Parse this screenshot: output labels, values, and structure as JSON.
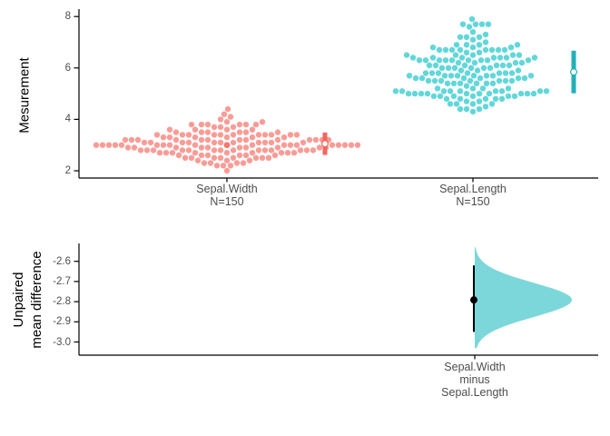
{
  "figure": {
    "kind": "estimation-plot",
    "background": "#ffffff",
    "axis_color": "#000000",
    "tick_label_color": "#4d4d4d"
  },
  "chart_data": [
    {
      "panel": "top",
      "type": "swarm",
      "ylabel": "Mesurement",
      "ytick_labels": [
        "8",
        "6",
        "4",
        "2"
      ],
      "yticks": [
        8,
        6,
        4,
        2
      ],
      "ylim": [
        1.8,
        8.4
      ],
      "grid": false,
      "groups": [
        {
          "label": "Sepal.Width",
          "n_label": "N=150",
          "n": 150,
          "color": "#F8766D",
          "bar_color": "#F4655D",
          "mean": 3.057,
          "sd": 0.436,
          "values": [
            3.5,
            3.0,
            3.2,
            3.1,
            3.6,
            3.9,
            3.4,
            3.4,
            2.9,
            3.1,
            3.7,
            3.4,
            3.0,
            3.0,
            4.0,
            4.4,
            3.9,
            3.5,
            3.8,
            3.8,
            3.4,
            3.7,
            3.6,
            3.3,
            3.4,
            3.0,
            3.4,
            3.5,
            3.4,
            3.2,
            3.1,
            3.4,
            4.1,
            4.2,
            3.1,
            3.2,
            3.5,
            3.6,
            3.0,
            3.4,
            3.5,
            2.3,
            3.2,
            3.5,
            3.8,
            3.0,
            3.8,
            3.2,
            3.7,
            3.3,
            3.2,
            3.2,
            3.1,
            2.3,
            2.8,
            2.8,
            3.3,
            2.4,
            2.9,
            2.7,
            2.0,
            3.0,
            2.2,
            2.9,
            2.9,
            3.1,
            3.0,
            2.7,
            2.2,
            2.5,
            3.2,
            2.8,
            2.5,
            2.8,
            2.9,
            3.0,
            2.8,
            3.0,
            2.9,
            2.6,
            2.4,
            2.4,
            2.7,
            2.7,
            3.0,
            3.4,
            3.1,
            2.3,
            3.0,
            2.5,
            2.6,
            3.0,
            2.6,
            2.3,
            2.7,
            3.0,
            2.9,
            2.9,
            2.5,
            2.8,
            3.3,
            2.7,
            3.0,
            2.9,
            3.0,
            3.0,
            2.5,
            2.9,
            2.5,
            3.6,
            3.2,
            2.7,
            3.0,
            2.5,
            2.8,
            3.2,
            3.0,
            3.8,
            2.6,
            2.2,
            3.2,
            2.8,
            2.8,
            2.7,
            3.3,
            3.2,
            2.8,
            3.0,
            2.8,
            3.0,
            2.8,
            3.8,
            2.8,
            2.8,
            2.6,
            3.0,
            3.4,
            3.1,
            3.0,
            3.1,
            3.1,
            3.1,
            2.7,
            3.2,
            3.3,
            3.0,
            2.5,
            3.0,
            2.6,
            3.0
          ]
        },
        {
          "label": "Sepal.Length",
          "n_label": "N=150",
          "n": 150,
          "color": "#00BFC4",
          "bar_color": "#23AFB8",
          "mean": 5.843,
          "sd": 0.828,
          "values": [
            5.1,
            4.9,
            4.7,
            4.6,
            5.0,
            5.4,
            4.6,
            5.0,
            4.4,
            4.9,
            5.4,
            4.8,
            4.8,
            4.3,
            5.8,
            5.7,
            5.4,
            5.1,
            5.7,
            5.1,
            5.4,
            5.1,
            4.6,
            5.1,
            4.8,
            5.0,
            5.0,
            5.2,
            5.2,
            4.7,
            4.8,
            5.4,
            5.2,
            5.5,
            4.9,
            5.0,
            5.5,
            4.9,
            4.4,
            5.1,
            5.0,
            4.5,
            4.4,
            5.0,
            5.1,
            4.8,
            5.1,
            4.6,
            5.3,
            5.0,
            7.0,
            6.4,
            6.9,
            5.5,
            6.5,
            5.7,
            6.3,
            4.9,
            6.6,
            5.2,
            5.0,
            5.9,
            6.0,
            6.1,
            5.6,
            6.7,
            5.6,
            5.8,
            6.2,
            5.6,
            5.9,
            6.1,
            6.3,
            6.1,
            6.4,
            6.6,
            6.8,
            6.7,
            6.0,
            5.7,
            5.5,
            5.5,
            5.8,
            6.0,
            5.4,
            6.0,
            6.7,
            6.3,
            5.6,
            5.5,
            5.5,
            6.1,
            5.8,
            5.0,
            5.6,
            5.7,
            5.7,
            6.2,
            5.1,
            5.7,
            6.3,
            5.8,
            7.1,
            6.3,
            6.5,
            7.6,
            4.9,
            7.3,
            6.7,
            7.2,
            6.5,
            6.4,
            6.8,
            5.7,
            5.8,
            6.4,
            6.5,
            7.7,
            7.7,
            6.0,
            6.9,
            5.6,
            7.7,
            6.3,
            6.7,
            7.2,
            6.2,
            6.1,
            6.4,
            7.2,
            7.4,
            7.9,
            6.4,
            6.3,
            6.1,
            7.7,
            6.3,
            6.4,
            6.0,
            6.9,
            6.7,
            6.9,
            5.8,
            6.8,
            6.7,
            6.7,
            6.3,
            6.5,
            6.2,
            5.9
          ]
        }
      ],
      "summary_marker": "mean_plus_minus_sd_gapped_bar_with_white_circle"
    },
    {
      "panel": "bottom",
      "type": "half_violin",
      "ylabel_lines": [
        "Unpaired",
        "mean difference"
      ],
      "ytick_labels": [
        "-2.6",
        "-2.7",
        "-2.8",
        "-2.9",
        "-3.0"
      ],
      "yticks": [
        -2.6,
        -2.7,
        -2.8,
        -2.9,
        -3.0
      ],
      "ylim": [
        -3.06,
        -2.52
      ],
      "grid": false,
      "xlabel_lines": [
        "Sepal.Width",
        "minus",
        "Sepal.Length"
      ],
      "effect": {
        "mean_difference": -2.786,
        "ci_low": -2.95,
        "ci_high": -2.62,
        "violin_color": "#7CD7DA",
        "violin_sd": 0.085,
        "violin_min": -3.03,
        "violin_max": -2.53,
        "marker_color": "#000000"
      }
    }
  ]
}
